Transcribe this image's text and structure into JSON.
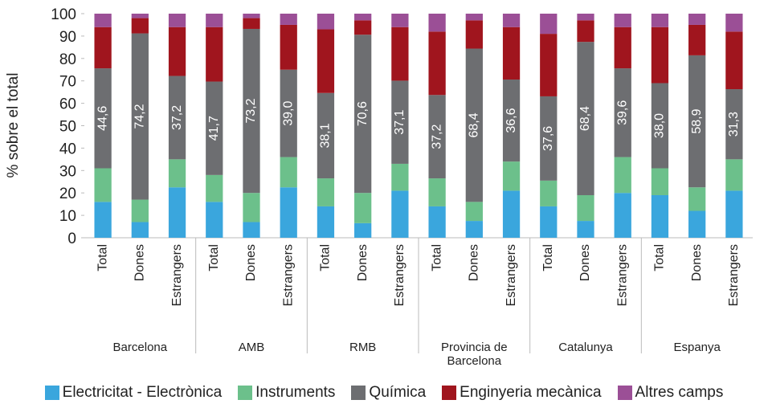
{
  "chart_data": {
    "type": "stacked-bar",
    "y_label": "% sobre el total",
    "categories": [
      "Total",
      "Dones",
      "Estrangers",
      "Total",
      "Dones",
      "Estrangers",
      "Total",
      "Dones",
      "Estrangers",
      "Total",
      "Dones",
      "Estrangers",
      "Total",
      "Dones",
      "Estrangers",
      "Total",
      "Dones",
      "Estrangers"
    ],
    "groups": [
      "Barcelona",
      "AMB",
      "RMB",
      "Provincia de Barcelona",
      "Catalunya",
      "Espanya"
    ],
    "ylim": [
      0,
      100
    ],
    "yticks": [
      0,
      10,
      20,
      30,
      40,
      50,
      60,
      70,
      80,
      90,
      100
    ],
    "grid": false,
    "legend": "bottom",
    "series": [
      {
        "name": "Electricitat - Electrònica",
        "color": "#3aa6dd",
        "values": [
          16,
          7,
          22.5,
          16,
          7,
          22.5,
          14,
          6.5,
          21,
          14,
          7.5,
          21,
          14,
          7.5,
          20,
          19,
          12,
          21
        ]
      },
      {
        "name": "Instruments",
        "color": "#6cc08b",
        "values": [
          15,
          10,
          12.5,
          12,
          13,
          13.5,
          12.5,
          13.5,
          12,
          12.5,
          8.5,
          13,
          11.5,
          11.5,
          16,
          12,
          10.5,
          14
        ]
      },
      {
        "name": "Química",
        "color": "#6d6e71",
        "values": [
          44.6,
          74.2,
          37.2,
          41.7,
          73.2,
          39.0,
          38.1,
          70.6,
          37.1,
          37.2,
          68.4,
          36.6,
          37.6,
          68.4,
          39.6,
          38.0,
          58.9,
          31.3
        ],
        "value_labels": [
          "44,6",
          "74,2",
          "37,2",
          "41,7",
          "73,2",
          "39,0",
          "38,1",
          "70,6",
          "37,1",
          "37,2",
          "68,4",
          "36,6",
          "37,6",
          "68,4",
          "39,6",
          "38,0",
          "58,9",
          "31,3"
        ]
      },
      {
        "name": "Enginyeria mecànica",
        "color": "#a0151e",
        "values": [
          18.4,
          6.8,
          21.8,
          24.3,
          4.8,
          20,
          28.4,
          6.4,
          23.9,
          28.3,
          12.6,
          23.4,
          27.9,
          9.6,
          18.4,
          25,
          13.6,
          25.7
        ]
      },
      {
        "name": "Altres camps",
        "color": "#9b4f96",
        "values": [
          6,
          2,
          6,
          6,
          2,
          5,
          7,
          3,
          6,
          8,
          3,
          6,
          9,
          3,
          6,
          6,
          5,
          8
        ]
      }
    ]
  }
}
